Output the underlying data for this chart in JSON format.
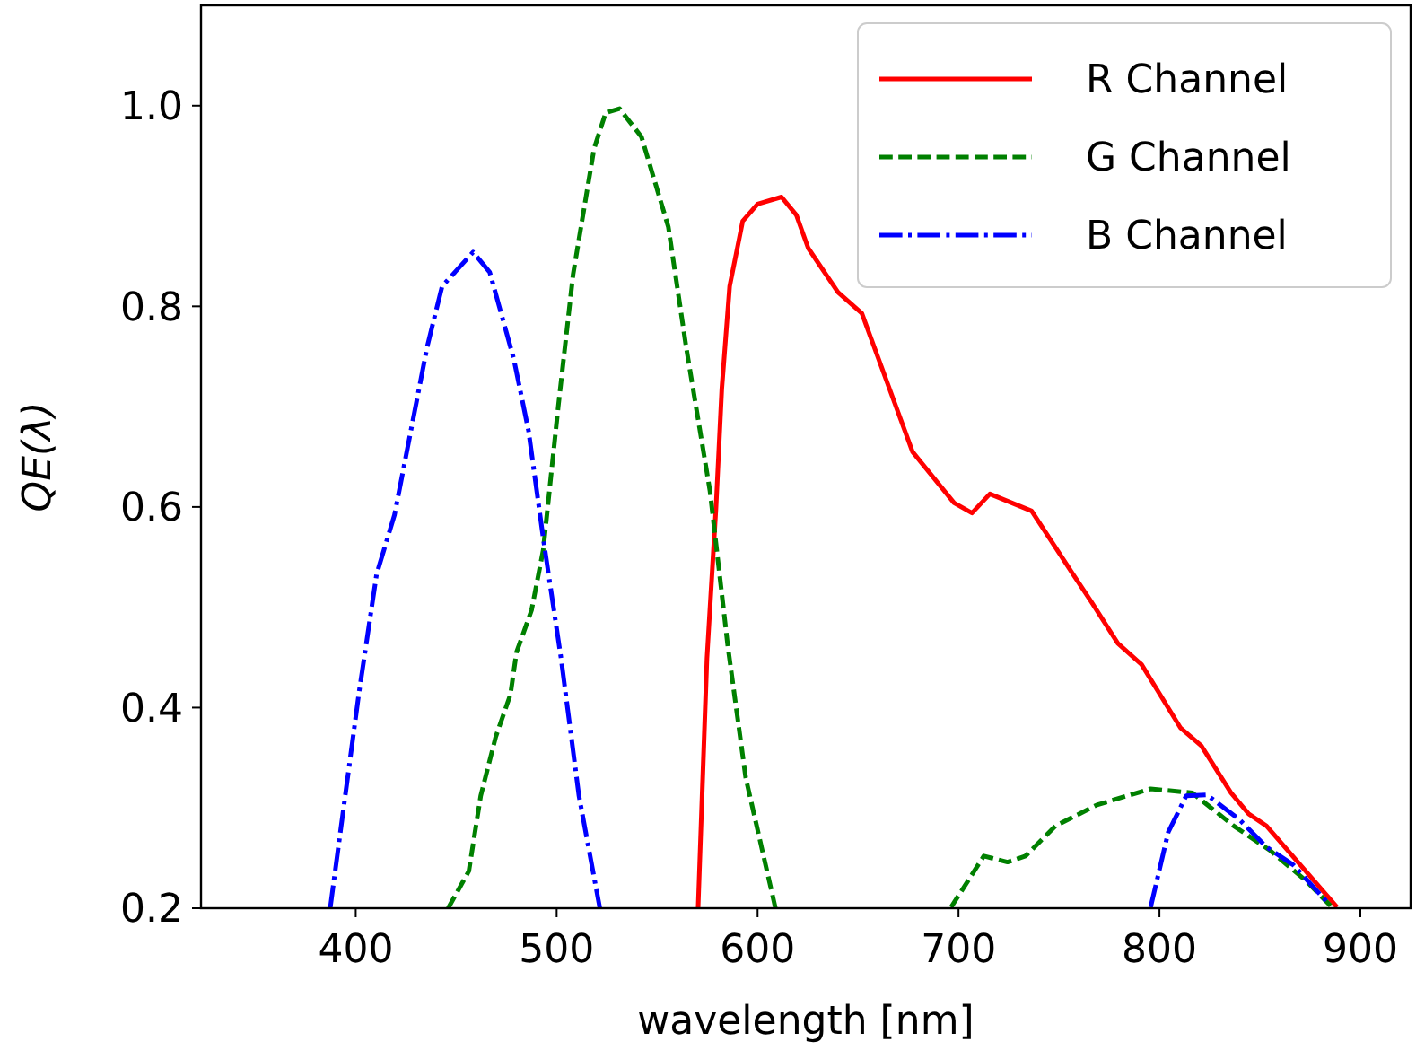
{
  "chart_data": {
    "type": "line",
    "xlabel": "wavelength [nm]",
    "ylabel": "QE(λ)",
    "xlim": [
      323,
      925
    ],
    "ylim": [
      0.2,
      1.1
    ],
    "xticks": [
      400,
      500,
      600,
      700,
      800,
      900
    ],
    "yticks": [
      0.2,
      0.4,
      0.6,
      0.8,
      {
        "value": 1,
        "label": "1.0"
      }
    ],
    "grid": false,
    "legend": "top right",
    "series": [
      {
        "name": "R Channel",
        "color": "#ff0000",
        "line_style": "solid",
        "x": [
          570.4,
          574.8,
          579.3,
          582.2,
          586.1,
          592.6,
          600,
          611.9,
          619.3,
          625.2,
          640,
          651.9,
          671.1,
          677.1,
          697.8,
          706.7,
          715.6,
          736.4,
          757,
          765.9,
          779.3,
          791.1,
          810.4,
          820.8,
          835.6,
          844.4,
          853.3,
          888.4
        ],
        "values": [
          0.2,
          0.449,
          0.599,
          0.718,
          0.82,
          0.885,
          0.902,
          0.909,
          0.891,
          0.858,
          0.814,
          0.793,
          0.688,
          0.655,
          0.604,
          0.594,
          0.613,
          0.596,
          0.533,
          0.506,
          0.464,
          0.443,
          0.38,
          0.362,
          0.315,
          0.294,
          0.282,
          0.201
        ]
      },
      {
        "name": "G Channel",
        "color": "#008000",
        "line_style": "dashed",
        "x": [
          446,
          456.3,
          462.2,
          469.7,
          477,
          480,
          487.5,
          493.3,
          500.8,
          508.2,
          518.6,
          524.4,
          531.3,
          542.2,
          555.6,
          564.4,
          576.3,
          585.2,
          594.1,
          608.9,
          650,
          696.3,
          712.6,
          724.4,
          733.3,
          748.2,
          768.9,
          795.6,
          816.4,
          837,
          854.8,
          872.6,
          885.9
        ],
        "values": [
          0.2,
          0.237,
          0.312,
          0.371,
          0.413,
          0.455,
          0.497,
          0.557,
          0.7,
          0.832,
          0.957,
          0.993,
          0.997,
          0.969,
          0.879,
          0.76,
          0.616,
          0.461,
          0.33,
          0.2,
          null,
          0.201,
          0.252,
          0.246,
          0.252,
          0.282,
          0.303,
          0.319,
          0.315,
          0.282,
          0.258,
          0.228,
          0.201
        ]
      },
      {
        "name": "B Channel",
        "color": "#0000ff",
        "line_style": "dashdot",
        "x": [
          387.3,
          401.5,
          410.4,
          419.3,
          435.6,
          443,
          458.4,
          466.7,
          478.6,
          486,
          493.3,
          502.2,
          511.1,
          521.5,
          650,
          795.6,
          804.4,
          813.3,
          823.7,
          840,
          853.3,
          866.7,
          884.4
        ],
        "values": [
          0.2,
          0.413,
          0.533,
          0.592,
          0.76,
          0.82,
          0.854,
          0.834,
          0.748,
          0.676,
          0.569,
          0.449,
          0.312,
          0.2,
          null,
          0.201,
          0.276,
          0.312,
          0.313,
          0.288,
          0.261,
          0.243,
          0.204
        ]
      }
    ]
  }
}
